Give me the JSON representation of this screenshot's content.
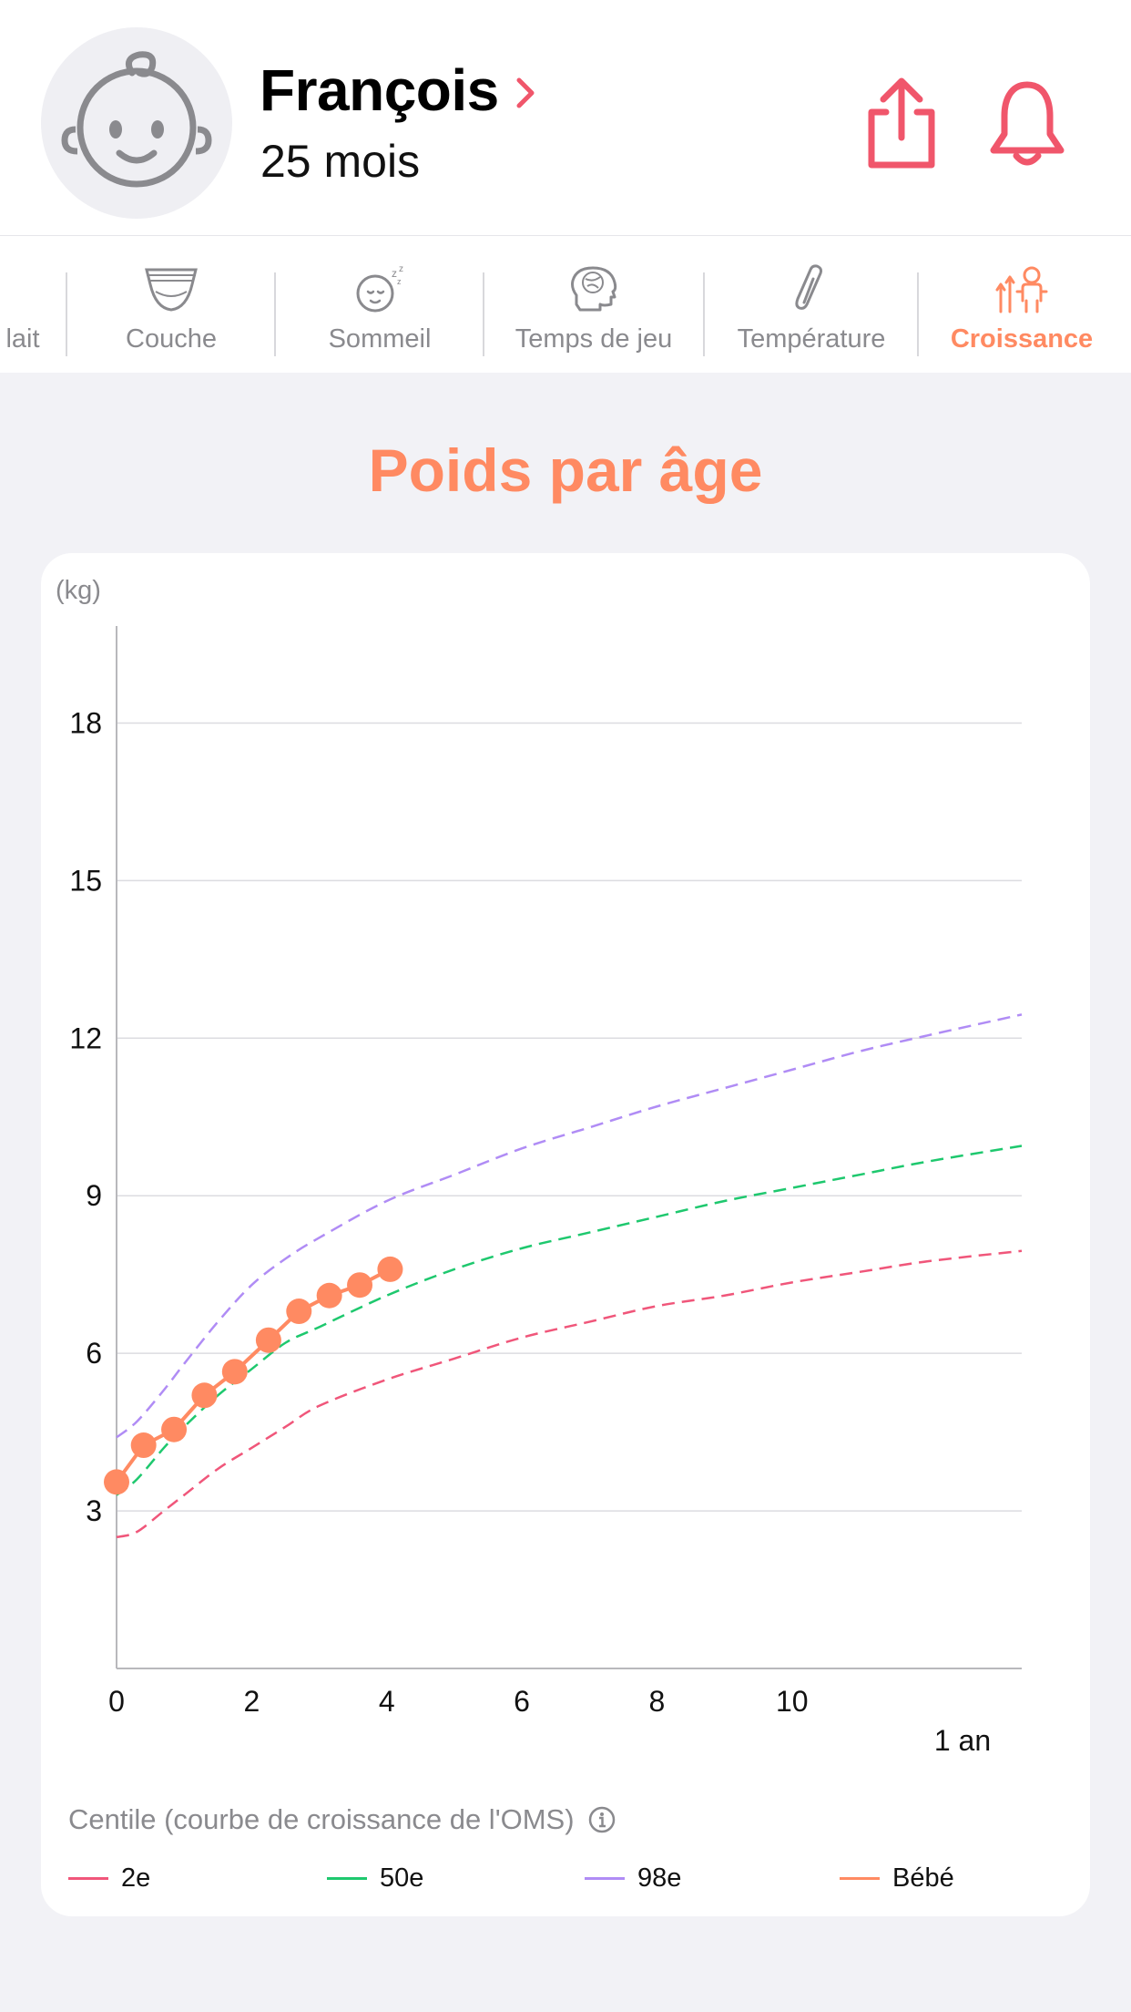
{
  "profile": {
    "name": "François",
    "age": "25 mois"
  },
  "tabs": [
    {
      "label": "lait",
      "icon": "bottle-icon",
      "active": false
    },
    {
      "label": "Couche",
      "icon": "diaper-icon",
      "active": false
    },
    {
      "label": "Sommeil",
      "icon": "sleeping-baby-icon",
      "active": false
    },
    {
      "label": "Temps de jeu",
      "icon": "brain-icon",
      "active": false
    },
    {
      "label": "Température",
      "icon": "thermometer-icon",
      "active": false
    },
    {
      "label": "Croissance",
      "icon": "growth-icon",
      "active": true
    }
  ],
  "page_title": "Poids par âge",
  "colors": {
    "accent": "#ff8a62",
    "header_icons": "#f0566b",
    "p2": "#f0567a",
    "p50": "#1ec86e",
    "p98": "#b08cf5",
    "baby": "#ff8a62"
  },
  "chart_data": {
    "type": "line",
    "ylabel": "(kg)",
    "xlabel": "1 an",
    "ylim": [
      0,
      19.5
    ],
    "xlim": [
      0,
      13.4
    ],
    "yticks": [
      3,
      6,
      9,
      12,
      15,
      18
    ],
    "xticks": [
      0,
      2,
      4,
      6,
      8,
      10
    ],
    "grid": true,
    "legend_title": "Centile (courbe de croissance de l'OMS)",
    "series": [
      {
        "name": "2e",
        "style": "dashed",
        "color": "#f0567a",
        "x": [
          0,
          0.3,
          0.7,
          1,
          1.5,
          2,
          2.5,
          3,
          4,
          5,
          6,
          7,
          8,
          9,
          10,
          11,
          12,
          13.4
        ],
        "y": [
          2.5,
          2.6,
          3.0,
          3.3,
          3.8,
          4.2,
          4.6,
          5.0,
          5.5,
          5.9,
          6.3,
          6.6,
          6.9,
          7.1,
          7.35,
          7.55,
          7.75,
          7.95
        ]
      },
      {
        "name": "50e",
        "style": "dashed",
        "color": "#1ec86e",
        "x": [
          0,
          0.3,
          0.7,
          1,
          1.5,
          2,
          2.5,
          3,
          4,
          5,
          6,
          7,
          8,
          9,
          10,
          11,
          12,
          13.4
        ],
        "y": [
          3.3,
          3.6,
          4.2,
          4.6,
          5.2,
          5.7,
          6.2,
          6.5,
          7.1,
          7.6,
          8.0,
          8.3,
          8.6,
          8.9,
          9.15,
          9.4,
          9.65,
          9.95
        ]
      },
      {
        "name": "98e",
        "style": "dashed",
        "color": "#b08cf5",
        "x": [
          0,
          0.3,
          0.7,
          1,
          1.5,
          2,
          2.5,
          3,
          4,
          5,
          6,
          7,
          8,
          9,
          10,
          11,
          12,
          13.4
        ],
        "y": [
          4.4,
          4.7,
          5.3,
          5.8,
          6.6,
          7.3,
          7.8,
          8.2,
          8.9,
          9.4,
          9.9,
          10.3,
          10.7,
          11.05,
          11.4,
          11.75,
          12.05,
          12.45
        ]
      },
      {
        "name": "Bébé",
        "style": "solid-markers",
        "color": "#ff8a62",
        "x": [
          0,
          0.4,
          0.85,
          1.3,
          1.75,
          2.25,
          2.7,
          3.15,
          3.6,
          4.05
        ],
        "y": [
          3.55,
          4.25,
          4.55,
          5.2,
          5.65,
          6.25,
          6.8,
          7.1,
          7.3,
          7.6
        ]
      }
    ]
  }
}
